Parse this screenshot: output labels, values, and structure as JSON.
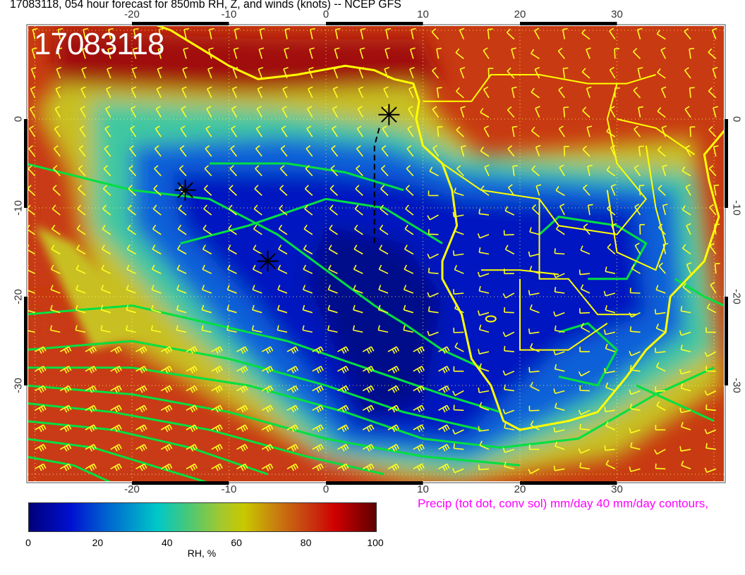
{
  "title": "17083118, 054 hour forecast for 850mb RH, Z, and winds (knots)  -- NCEP GFS",
  "stamp": "17083118",
  "axes": {
    "lon_ticks": [
      "-20",
      "-10",
      "0",
      "10",
      "20",
      "30"
    ],
    "lon_values": [
      -20,
      -10,
      0,
      10,
      20,
      30
    ],
    "lat_ticks": [
      "0",
      "-10",
      "-20",
      "-30"
    ],
    "lat_values": [
      0,
      -10,
      -20,
      -30
    ],
    "lon_range": [
      -31,
      41
    ],
    "lat_range": [
      -41,
      10.5
    ]
  },
  "colorbar": {
    "ticks": [
      "0",
      "20",
      "40",
      "60",
      "80",
      "100"
    ],
    "label": "RH, %",
    "range": [
      0,
      100
    ]
  },
  "precip_note": "Precip (tot dot, conv sol) mm/day 40 mm/day contours,",
  "markers": [
    {
      "type": "asterisk",
      "lon": 6.5,
      "lat": 0.5
    },
    {
      "type": "asterisk",
      "lon": -14.5,
      "lat": -8
    },
    {
      "type": "asterisk",
      "lon": -6,
      "lat": -16
    }
  ],
  "colors": {
    "coastline": "#ffff00",
    "wind_barbs": "#ffff20",
    "height_contours": "#00e040",
    "precip_text": "#ff00ff",
    "dry": "#0010c0",
    "moist": "#c83010"
  }
}
